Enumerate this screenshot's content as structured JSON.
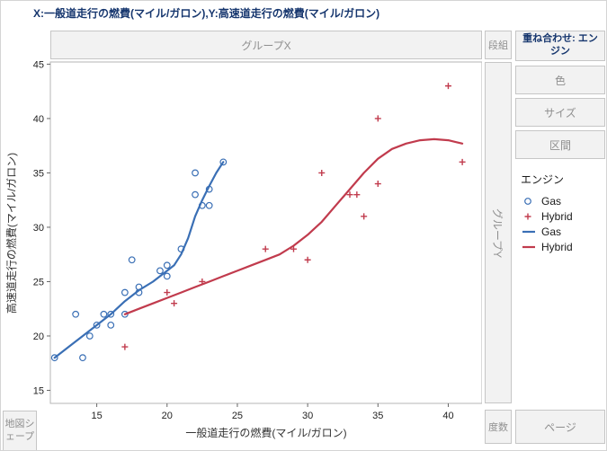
{
  "window": {
    "title": "X:一般道走行の燃費(マイル/ガロン),Y:高速道走行の燃費(マイル/ガロン)"
  },
  "drop_zones": {
    "group_x": {
      "label": "グループX"
    },
    "wrap": {
      "label": "段組"
    },
    "overlay": {
      "label": "重ね合わせ: エンジン"
    },
    "color": {
      "label": "色"
    },
    "size": {
      "label": "サイズ"
    },
    "interval": {
      "label": "区間"
    },
    "group_y": {
      "label": "グループY"
    },
    "freq": {
      "label": "度数"
    },
    "page": {
      "label": "ページ"
    },
    "map_shape": {
      "label": "地図シェープ"
    }
  },
  "legend": {
    "title": "エンジン",
    "items": [
      {
        "label": "Gas",
        "marker": "circle",
        "color": "#3a6fb5"
      },
      {
        "label": "Hybrid",
        "marker": "plus",
        "color": "#c13b4d"
      },
      {
        "label": "Gas",
        "marker": "line",
        "color": "#3a6fb5"
      },
      {
        "label": "Hybrid",
        "marker": "line",
        "color": "#c13b4d"
      }
    ]
  },
  "chart_data": {
    "type": "scatter",
    "title": "",
    "xlabel": "一般道走行の燃費(マイル/ガロン)",
    "ylabel": "高速道走行の燃費(マイル/ガロン)",
    "xlim": [
      11.7,
      42.4
    ],
    "ylim": [
      13.8,
      45.2
    ],
    "xticks": [
      15,
      20,
      25,
      30,
      35,
      40
    ],
    "yticks": [
      15,
      20,
      25,
      30,
      35,
      40,
      45
    ],
    "grid": false,
    "legend_position": "right",
    "series": [
      {
        "name": "Gas",
        "marker": "circle",
        "color": "#3a6fb5",
        "points": [
          [
            12,
            18
          ],
          [
            14,
            18
          ],
          [
            13.5,
            22
          ],
          [
            14.5,
            20
          ],
          [
            15,
            21
          ],
          [
            15.5,
            22
          ],
          [
            16,
            21
          ],
          [
            16,
            22
          ],
          [
            17,
            22
          ],
          [
            17,
            24
          ],
          [
            17.5,
            27
          ],
          [
            18,
            24.5
          ],
          [
            18,
            24
          ],
          [
            19.5,
            26
          ],
          [
            20,
            26.5
          ],
          [
            20,
            25.5
          ],
          [
            21,
            28
          ],
          [
            22,
            35
          ],
          [
            22,
            33
          ],
          [
            22.5,
            32
          ],
          [
            23,
            33.5
          ],
          [
            23,
            32
          ],
          [
            24,
            36
          ]
        ]
      },
      {
        "name": "Hybrid",
        "marker": "plus",
        "color": "#c13b4d",
        "points": [
          [
            17,
            19
          ],
          [
            20,
            24
          ],
          [
            20.5,
            23
          ],
          [
            22.5,
            25
          ],
          [
            27,
            28
          ],
          [
            29,
            28
          ],
          [
            30,
            27
          ],
          [
            31,
            35
          ],
          [
            33,
            33
          ],
          [
            33.5,
            33
          ],
          [
            34,
            31
          ],
          [
            35,
            40
          ],
          [
            35,
            34
          ],
          [
            40,
            43
          ],
          [
            41,
            36
          ]
        ]
      }
    ],
    "smoothers": [
      {
        "name": "Gas",
        "color": "#3a6fb5",
        "points": [
          [
            12,
            18
          ],
          [
            13,
            19
          ],
          [
            14,
            20
          ],
          [
            15,
            21
          ],
          [
            16,
            22
          ],
          [
            17,
            23.2
          ],
          [
            18,
            24.2
          ],
          [
            19,
            25
          ],
          [
            20,
            26
          ],
          [
            20.5,
            26.5
          ],
          [
            21,
            27.5
          ],
          [
            21.5,
            29
          ],
          [
            22,
            31
          ],
          [
            22.5,
            32.5
          ],
          [
            23,
            33.8
          ],
          [
            23.5,
            35
          ],
          [
            24,
            36
          ]
        ]
      },
      {
        "name": "Hybrid",
        "color": "#c13b4d",
        "points": [
          [
            17,
            22
          ],
          [
            18,
            22.5
          ],
          [
            19,
            23
          ],
          [
            20,
            23.5
          ],
          [
            21,
            24
          ],
          [
            22,
            24.5
          ],
          [
            23,
            25
          ],
          [
            24,
            25.5
          ],
          [
            25,
            26
          ],
          [
            26,
            26.5
          ],
          [
            27,
            27
          ],
          [
            28,
            27.5
          ],
          [
            29,
            28.3
          ],
          [
            30,
            29.3
          ],
          [
            31,
            30.5
          ],
          [
            32,
            32
          ],
          [
            33,
            33.5
          ],
          [
            34,
            35
          ],
          [
            35,
            36.3
          ],
          [
            36,
            37.2
          ],
          [
            37,
            37.7
          ],
          [
            38,
            38
          ],
          [
            39,
            38.1
          ],
          [
            40,
            38
          ],
          [
            41,
            37.7
          ]
        ]
      }
    ]
  }
}
